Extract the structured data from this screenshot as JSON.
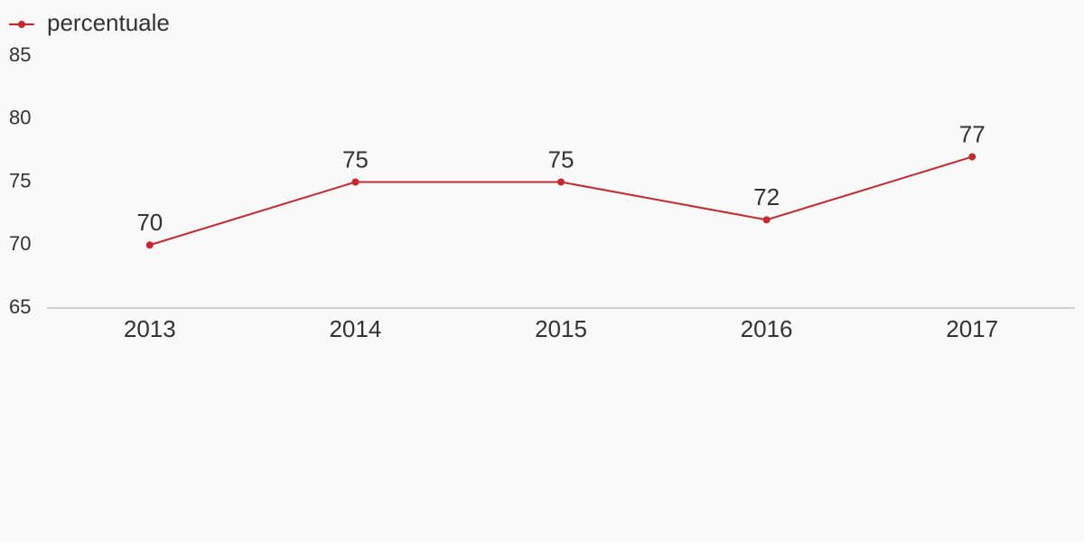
{
  "chart_data": {
    "type": "line",
    "categories": [
      "2013",
      "2014",
      "2015",
      "2016",
      "2017"
    ],
    "series": [
      {
        "name": "percentuale",
        "color": "#c8282e",
        "values": [
          70,
          75,
          75,
          72,
          77
        ]
      }
    ],
    "ylim": [
      65,
      85
    ],
    "yticks": [
      65,
      70,
      75,
      80,
      85
    ],
    "grid": false,
    "legend": "top-left"
  }
}
